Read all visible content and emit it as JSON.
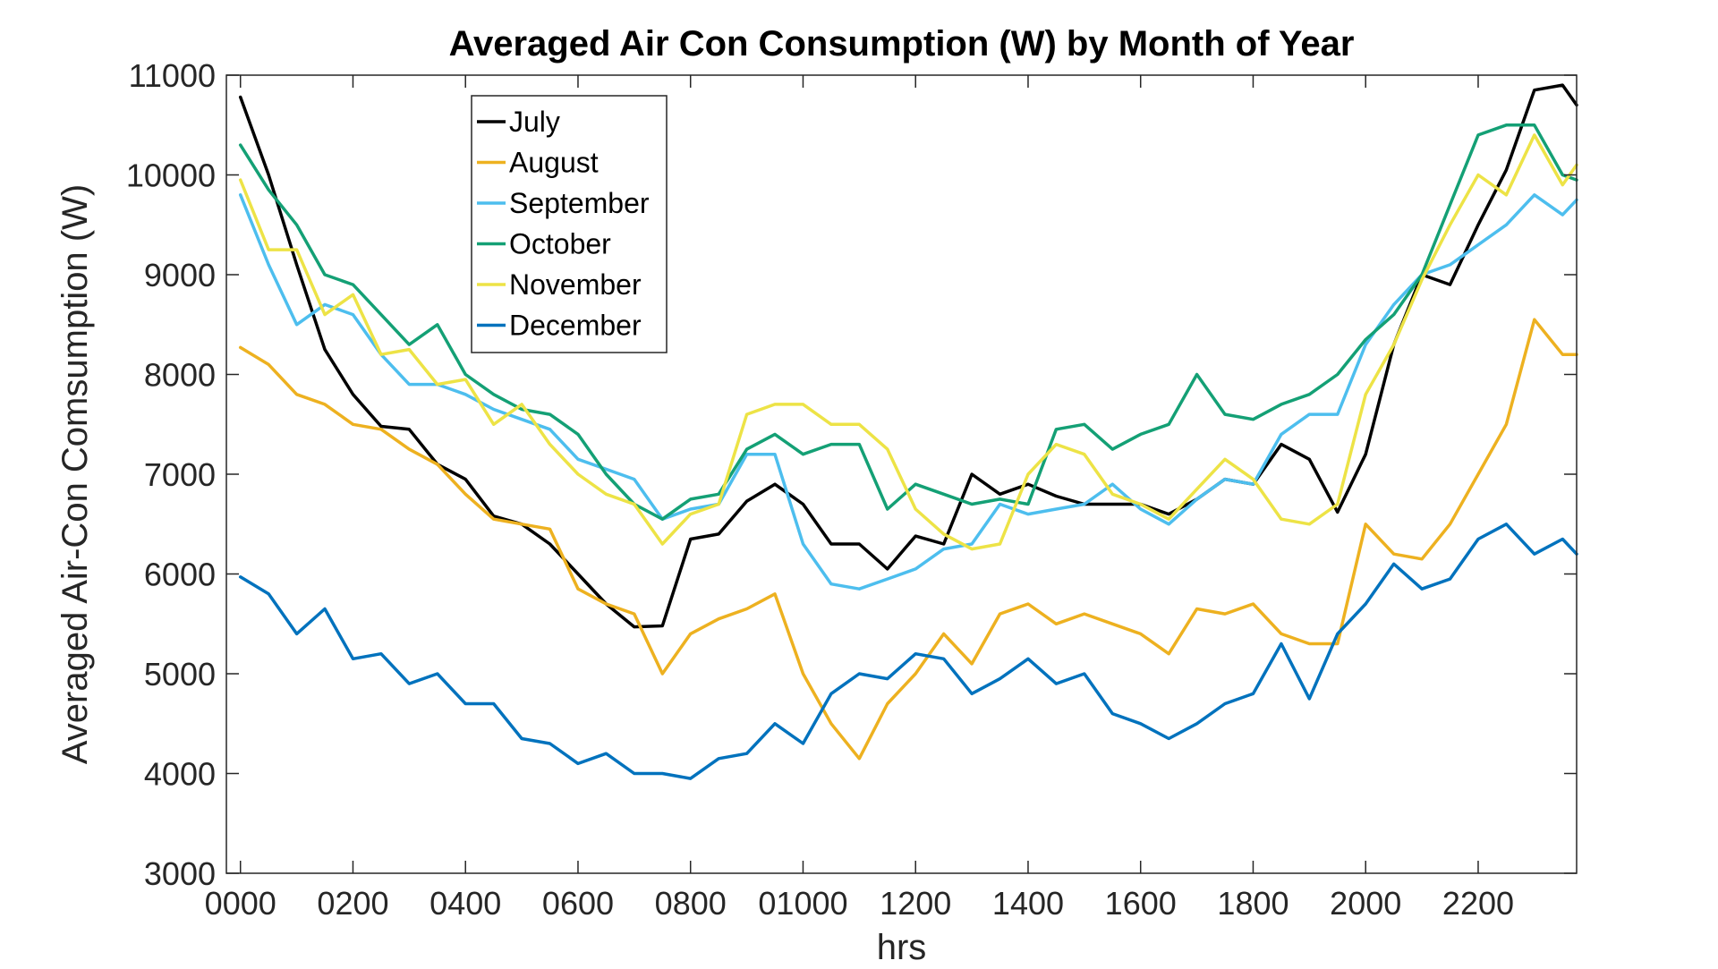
{
  "chart_data": {
    "type": "line",
    "title": "Averaged Air Con Consumption (W) by Month of Year",
    "xlabel": "hrs",
    "ylabel": "Averaged Air-Con Comsumption (W)",
    "xlim": [
      -0.25,
      23.75
    ],
    "ylim": [
      3000,
      11000
    ],
    "x_tick_values": [
      0,
      2,
      4,
      6,
      8,
      10,
      12,
      14,
      16,
      18,
      20,
      22
    ],
    "x_tick_labels": [
      "0000",
      "0200",
      "0400",
      "0600",
      "0800",
      "01000",
      "1200",
      "1400",
      "1600",
      "1800",
      "2000",
      "2200"
    ],
    "y_ticks": [
      3000,
      4000,
      5000,
      6000,
      7000,
      8000,
      9000,
      10000,
      11000
    ],
    "grid": false,
    "legend_position": "top-left",
    "x": [
      0,
      0.5,
      1,
      1.5,
      2,
      2.5,
      3,
      3.5,
      4,
      4.5,
      5,
      5.5,
      6,
      6.5,
      7,
      7.5,
      8,
      8.5,
      9,
      9.5,
      10,
      10.5,
      11,
      11.5,
      12,
      12.5,
      13,
      13.5,
      14,
      14.5,
      15,
      15.5,
      16,
      16.5,
      17,
      17.5,
      18,
      18.5,
      19,
      19.5,
      20,
      20.5,
      21,
      21.5,
      22,
      22.5,
      23,
      23.5,
      23.75
    ],
    "series": [
      {
        "name": "July",
        "color": "#000000",
        "values": [
          10780,
          10000,
          9100,
          8250,
          7800,
          7480,
          7450,
          7100,
          6950,
          6580,
          6500,
          6300,
          6000,
          5700,
          5470,
          5480,
          6350,
          6400,
          6730,
          6900,
          6700,
          6300,
          6300,
          6050,
          6380,
          6300,
          7000,
          6800,
          6900,
          6780,
          6700,
          6700,
          6700,
          6600,
          6750,
          6950,
          6900,
          7300,
          7150,
          6620,
          7200,
          8300,
          9000,
          8900,
          9500,
          10050,
          10850,
          10900,
          10700
        ]
      },
      {
        "name": "August",
        "color": "#EDB120",
        "values": [
          8270,
          8100,
          7800,
          7700,
          7500,
          7450,
          7250,
          7100,
          6800,
          6550,
          6500,
          6450,
          5850,
          5700,
          5600,
          5000,
          5400,
          5550,
          5650,
          5800,
          5000,
          4500,
          4150,
          4700,
          5000,
          5400,
          5100,
          5600,
          5700,
          5500,
          5600,
          5500,
          5400,
          5200,
          5650,
          5600,
          5700,
          5400,
          5300,
          5300,
          6500,
          6200,
          6150,
          6500,
          7000,
          7500,
          8550,
          8200,
          8200
        ]
      },
      {
        "name": "September",
        "color": "#4DBEEE",
        "values": [
          9800,
          9100,
          8500,
          8700,
          8600,
          8200,
          7900,
          7900,
          7800,
          7650,
          7550,
          7450,
          7150,
          7050,
          6950,
          6550,
          6650,
          6700,
          7200,
          7200,
          6300,
          5900,
          5850,
          5950,
          6050,
          6250,
          6300,
          6700,
          6600,
          6650,
          6700,
          6900,
          6650,
          6500,
          6750,
          6950,
          6900,
          7400,
          7600,
          7600,
          8300,
          8700,
          9000,
          9100,
          9300,
          9500,
          9800,
          9600,
          9750
        ]
      },
      {
        "name": "October",
        "color": "#14A075",
        "values": [
          10300,
          9850,
          9500,
          9000,
          8900,
          8600,
          8300,
          8500,
          8000,
          7800,
          7650,
          7600,
          7400,
          7000,
          6700,
          6550,
          6750,
          6800,
          7250,
          7400,
          7200,
          7300,
          7300,
          6650,
          6900,
          6800,
          6700,
          6750,
          6700,
          7450,
          7500,
          7250,
          7400,
          7500,
          8000,
          7600,
          7550,
          7700,
          7800,
          8000,
          8350,
          8600,
          9000,
          9700,
          10400,
          10500,
          10500,
          10000,
          9950
        ]
      },
      {
        "name": "November",
        "color": "#EDE346",
        "values": [
          9950,
          9250,
          9250,
          8600,
          8800,
          8200,
          8250,
          7900,
          7950,
          7500,
          7700,
          7300,
          7000,
          6800,
          6700,
          6300,
          6600,
          6700,
          7600,
          7700,
          7700,
          7500,
          7500,
          7250,
          6650,
          6400,
          6250,
          6300,
          7000,
          7300,
          7200,
          6800,
          6700,
          6550,
          6850,
          7150,
          6950,
          6550,
          6500,
          6700,
          7800,
          8300,
          8950,
          9500,
          10000,
          9800,
          10400,
          9900,
          10100
        ]
      },
      {
        "name": "December",
        "color": "#0072BD",
        "values": [
          5970,
          5800,
          5400,
          5650,
          5150,
          5200,
          4900,
          5000,
          4700,
          4700,
          4350,
          4300,
          4100,
          4200,
          4000,
          4000,
          3950,
          4150,
          4200,
          4500,
          4300,
          4800,
          5000,
          4950,
          5200,
          5150,
          4800,
          4950,
          5150,
          4900,
          5000,
          4600,
          4500,
          4350,
          4500,
          4700,
          4800,
          5300,
          4750,
          5400,
          5700,
          6100,
          5850,
          5950,
          6350,
          6500,
          6200,
          6350,
          6200
        ]
      }
    ]
  }
}
